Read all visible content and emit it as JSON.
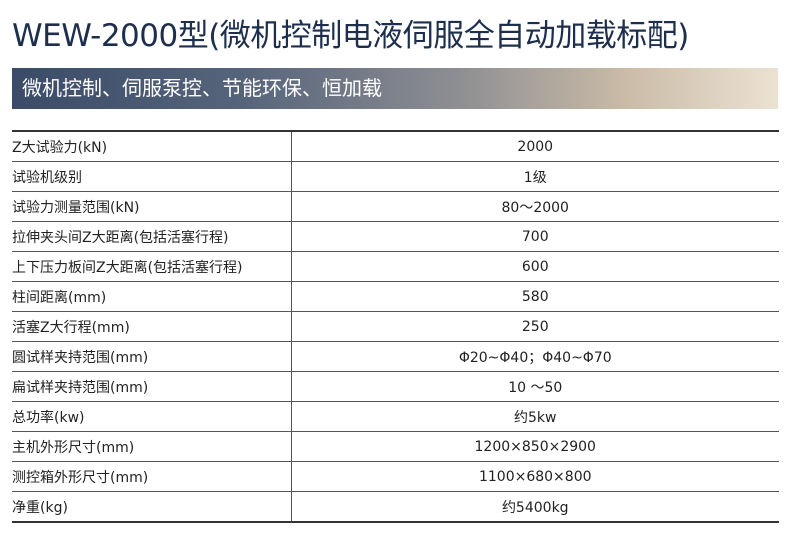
{
  "title": "WEW-2000型(微机控制电液伺服全自动加载标配)",
  "banner": "微机控制、伺服泵控、节能环保、恒加载",
  "rows": [
    {
      "label": "Z大试验力(kN)",
      "value": "2000"
    },
    {
      "label": "试验机级别",
      "value": "1级"
    },
    {
      "label": "试验力测量范围(kN)",
      "value": "80～2000"
    },
    {
      "label": "拉伸夹头间Z大距离(包括活塞行程)",
      "value": "700"
    },
    {
      "label": "上下压力板间Z大距离(包括活塞行程)",
      "value": "600"
    },
    {
      "label": "柱间距离(mm)",
      "value": "580"
    },
    {
      "label": "活塞Z大行程(mm)",
      "value": "250"
    },
    {
      "label": "圆试样夹持范围(mm)",
      "value": "Φ20~Φ40；Φ40~Φ70"
    },
    {
      "label": "扁试样夹持范围(mm)",
      "value": "10 ～50"
    },
    {
      "label": "总功率(kw)",
      "value": "约5kw"
    },
    {
      "label": "主机外形尺寸(mm)",
      "value": "1200×850×2900"
    },
    {
      "label": "测控箱外形尺寸(mm)",
      "value": "1100×680×800"
    },
    {
      "label": "净重(kg)",
      "value": "约5400kg"
    }
  ]
}
